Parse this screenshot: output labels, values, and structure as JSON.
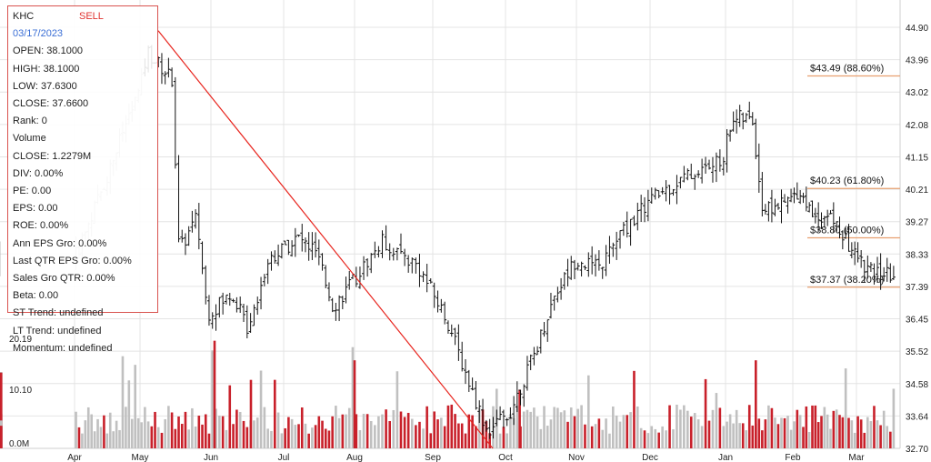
{
  "info": {
    "ticker": "KHC",
    "signal": "SELL",
    "date": "03/17/2023",
    "rows": [
      "OPEN: 38.1000",
      "HIGH: 38.1000",
      "LOW: 37.6300",
      "CLOSE: 37.6600",
      "Rank: 0",
      "Volume",
      "CLOSE: 1.2279M",
      "DIV: 0.00%",
      "PE: 0.00",
      "EPS: 0.00",
      "ROE: 0.00%",
      "Ann EPS Gro: 0.00%",
      "Last QTR EPS Gro: 0.00%",
      "Sales Gro QTR: 0.00%",
      "Beta: 0.00",
      "ST Trend: undefined",
      "LT Trend: undefined",
      "Momentum: undefined"
    ]
  },
  "colors": {
    "up_volume": "#c0c0c0",
    "down_volume": "#c8202a",
    "trendline": "#e8261f",
    "fib_line": "#e8a070",
    "candle": "#111111",
    "past_candle": "#bdbdbd"
  },
  "chart_data": {
    "type": "candlestick",
    "title": "",
    "price_axis_ticks": [
      "44.90",
      "43.96",
      "43.02",
      "42.08",
      "41.15",
      "40.21",
      "39.27",
      "38.33",
      "37.39",
      "36.45",
      "35.52",
      "34.58",
      "33.64",
      "32.70"
    ],
    "price_range": [
      32.7,
      44.9
    ],
    "volume_axis_ticks": [
      "20.19",
      "10.10",
      "0.0M"
    ],
    "volume_range_m": [
      0,
      30.3
    ],
    "x_tick_labels": [
      "Apr",
      "May",
      "Jun",
      "Jul",
      "Aug",
      "Sep",
      "Oct",
      "Nov",
      "Dec",
      "Jan",
      "Feb",
      "Mar"
    ],
    "fibonacci_levels": [
      {
        "label": "$43.49 (88.60%)",
        "price": 43.49
      },
      {
        "label": "$40.23 (61.80%)",
        "price": 40.23
      },
      {
        "label": "$38.80 (50.00%)",
        "price": 38.8
      },
      {
        "label": "$37.37 (38.20%)",
        "price": 37.37
      }
    ],
    "trendline": {
      "start": {
        "month": "May",
        "price": 44.8
      },
      "end": {
        "month": "Oct",
        "price": 32.7
      }
    },
    "price_path": [
      {
        "m": 0.0,
        "p": 38.2
      },
      {
        "m": 0.5,
        "p": 40.6
      },
      {
        "m": 0.8,
        "p": 42.2
      },
      {
        "m": 1.0,
        "p": 43.1
      },
      {
        "m": 1.1,
        "p": 44.2
      },
      {
        "m": 1.45,
        "p": 43.4
      },
      {
        "m": 1.55,
        "p": 38.4
      },
      {
        "m": 1.8,
        "p": 39.4
      },
      {
        "m": 1.95,
        "p": 36.6
      },
      {
        "m": 2.3,
        "p": 37.2
      },
      {
        "m": 2.5,
        "p": 36.2
      },
      {
        "m": 2.8,
        "p": 38.2
      },
      {
        "m": 3.2,
        "p": 38.8
      },
      {
        "m": 3.45,
        "p": 38.4
      },
      {
        "m": 3.7,
        "p": 36.8
      },
      {
        "m": 4.0,
        "p": 37.6
      },
      {
        "m": 4.35,
        "p": 38.7
      },
      {
        "m": 4.8,
        "p": 38.0
      },
      {
        "m": 5.2,
        "p": 36.4
      },
      {
        "m": 5.5,
        "p": 34.6
      },
      {
        "m": 5.75,
        "p": 33.2
      },
      {
        "m": 6.05,
        "p": 33.7
      },
      {
        "m": 6.4,
        "p": 35.4
      },
      {
        "m": 6.7,
        "p": 37.2
      },
      {
        "m": 7.0,
        "p": 38.2
      },
      {
        "m": 7.3,
        "p": 37.9
      },
      {
        "m": 7.6,
        "p": 38.9
      },
      {
        "m": 8.0,
        "p": 39.9
      },
      {
        "m": 8.5,
        "p": 40.6
      },
      {
        "m": 8.95,
        "p": 41.0
      },
      {
        "m": 9.1,
        "p": 42.3
      },
      {
        "m": 9.4,
        "p": 42.2
      },
      {
        "m": 9.55,
        "p": 39.6
      },
      {
        "m": 9.9,
        "p": 39.8
      },
      {
        "m": 10.1,
        "p": 40.2
      },
      {
        "m": 10.3,
        "p": 39.5
      },
      {
        "m": 10.6,
        "p": 39.4
      },
      {
        "m": 10.9,
        "p": 38.5
      },
      {
        "m": 11.2,
        "p": 37.8
      },
      {
        "m": 11.6,
        "p": 37.7
      }
    ]
  }
}
